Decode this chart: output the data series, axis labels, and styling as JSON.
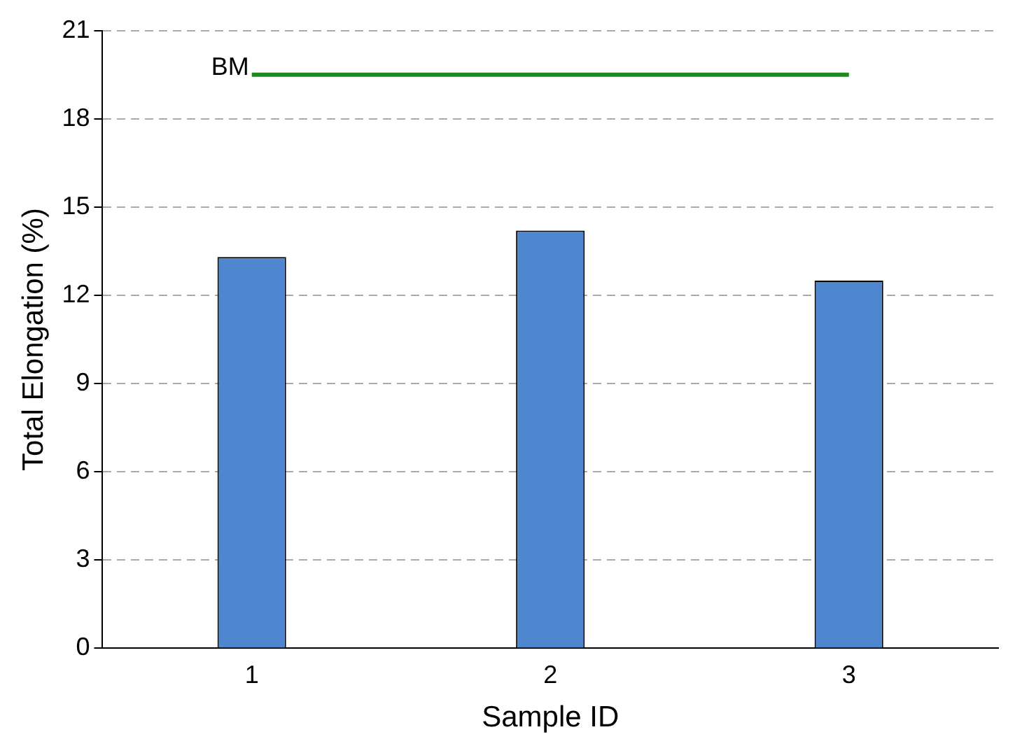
{
  "chart_data": {
    "type": "bar",
    "xlabel": "Sample ID",
    "ylabel": "Total Elongation (%)",
    "categories": [
      "1",
      "2",
      "3"
    ],
    "values": [
      13.3,
      14.2,
      12.5
    ],
    "color": "#4f86d0",
    "ylim": [
      0,
      21
    ],
    "yticks": [
      0,
      3,
      6,
      9,
      12,
      15,
      18,
      21
    ],
    "grid": "y",
    "legend": false,
    "ref_lines": [
      {
        "axis": "y",
        "value": 19.5,
        "label": "BM",
        "color": "#1e8a1e"
      }
    ]
  }
}
